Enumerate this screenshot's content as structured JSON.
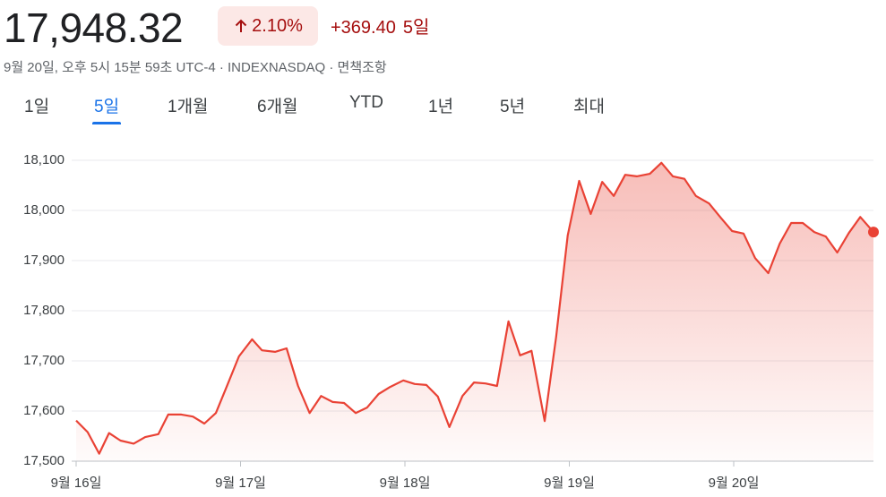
{
  "header": {
    "price": "17,948.32",
    "change_percent": "2.10%",
    "change_value": "+369.40",
    "period": "5일",
    "subtitle": "9월 20일, 오후 5시 15분 59초 UTC-4 · INDEXNASDAQ · 면책조항"
  },
  "tabs": [
    "1일",
    "5일",
    "1개월",
    "6개월",
    "YTD",
    "1년",
    "5년",
    "최대"
  ],
  "active_tab": 1,
  "chart_data": {
    "type": "line",
    "color": "#e94235",
    "x": [
      0,
      0.07,
      0.14,
      0.2,
      0.27,
      0.35,
      0.42,
      0.5,
      0.56,
      0.64,
      0.71,
      0.78,
      0.85,
      0.92,
      0.99,
      1.07,
      1.13,
      1.21,
      1.28,
      1.35,
      1.42,
      1.49,
      1.56,
      1.63,
      1.7,
      1.77,
      1.84,
      1.91,
      1.99,
      2.06,
      2.13,
      2.2,
      2.27,
      2.35,
      2.42,
      2.49,
      2.56,
      2.63,
      2.7,
      2.77,
      2.85,
      2.92,
      2.99,
      3.06,
      3.13,
      3.2,
      3.27,
      3.34,
      3.41,
      3.49,
      3.56,
      3.63,
      3.7,
      3.77,
      3.85,
      3.92,
      3.99,
      4.06,
      4.13,
      4.21,
      4.28,
      4.35,
      4.42,
      4.49,
      4.56,
      4.63,
      4.7,
      4.77,
      4.85
    ],
    "values": [
      17581,
      17558,
      17515,
      17556,
      17541,
      17535,
      17548,
      17554,
      17593,
      17593,
      17589,
      17575,
      17596,
      17652,
      17709,
      17743,
      17721,
      17718,
      17725,
      17650,
      17596,
      17630,
      17618,
      17616,
      17596,
      17607,
      17634,
      17648,
      17661,
      17654,
      17652,
      17629,
      17568,
      17630,
      17657,
      17655,
      17650,
      17779,
      17711,
      17720,
      17580,
      17748,
      17950,
      18059,
      17993,
      18057,
      18029,
      18071,
      18068,
      18073,
      18095,
      18068,
      18063,
      18029,
      18014,
      17986,
      17959,
      17954,
      17905,
      17875,
      17934,
      17975,
      17975,
      17957,
      17948,
      17916,
      17955,
      17987,
      17957
    ],
    "xlim": [
      0,
      4.85
    ],
    "xticks": [
      {
        "value": 0,
        "label": "9월 16일"
      },
      {
        "value": 1,
        "label": "9월 17일"
      },
      {
        "value": 2,
        "label": "9월 18일"
      },
      {
        "value": 3,
        "label": "9월 19일"
      },
      {
        "value": 4,
        "label": "9월 20일"
      }
    ],
    "ylim": [
      17500,
      18100
    ],
    "yticks": [
      {
        "value": 17500,
        "label": "17,500"
      },
      {
        "value": 17600,
        "label": "17,600"
      },
      {
        "value": 17700,
        "label": "17,700"
      },
      {
        "value": 17800,
        "label": "17,800"
      },
      {
        "value": 17900,
        "label": "17,900"
      },
      {
        "value": 18000,
        "label": "18,000"
      },
      {
        "value": 18100,
        "label": "18,100"
      }
    ],
    "grid": true
  }
}
